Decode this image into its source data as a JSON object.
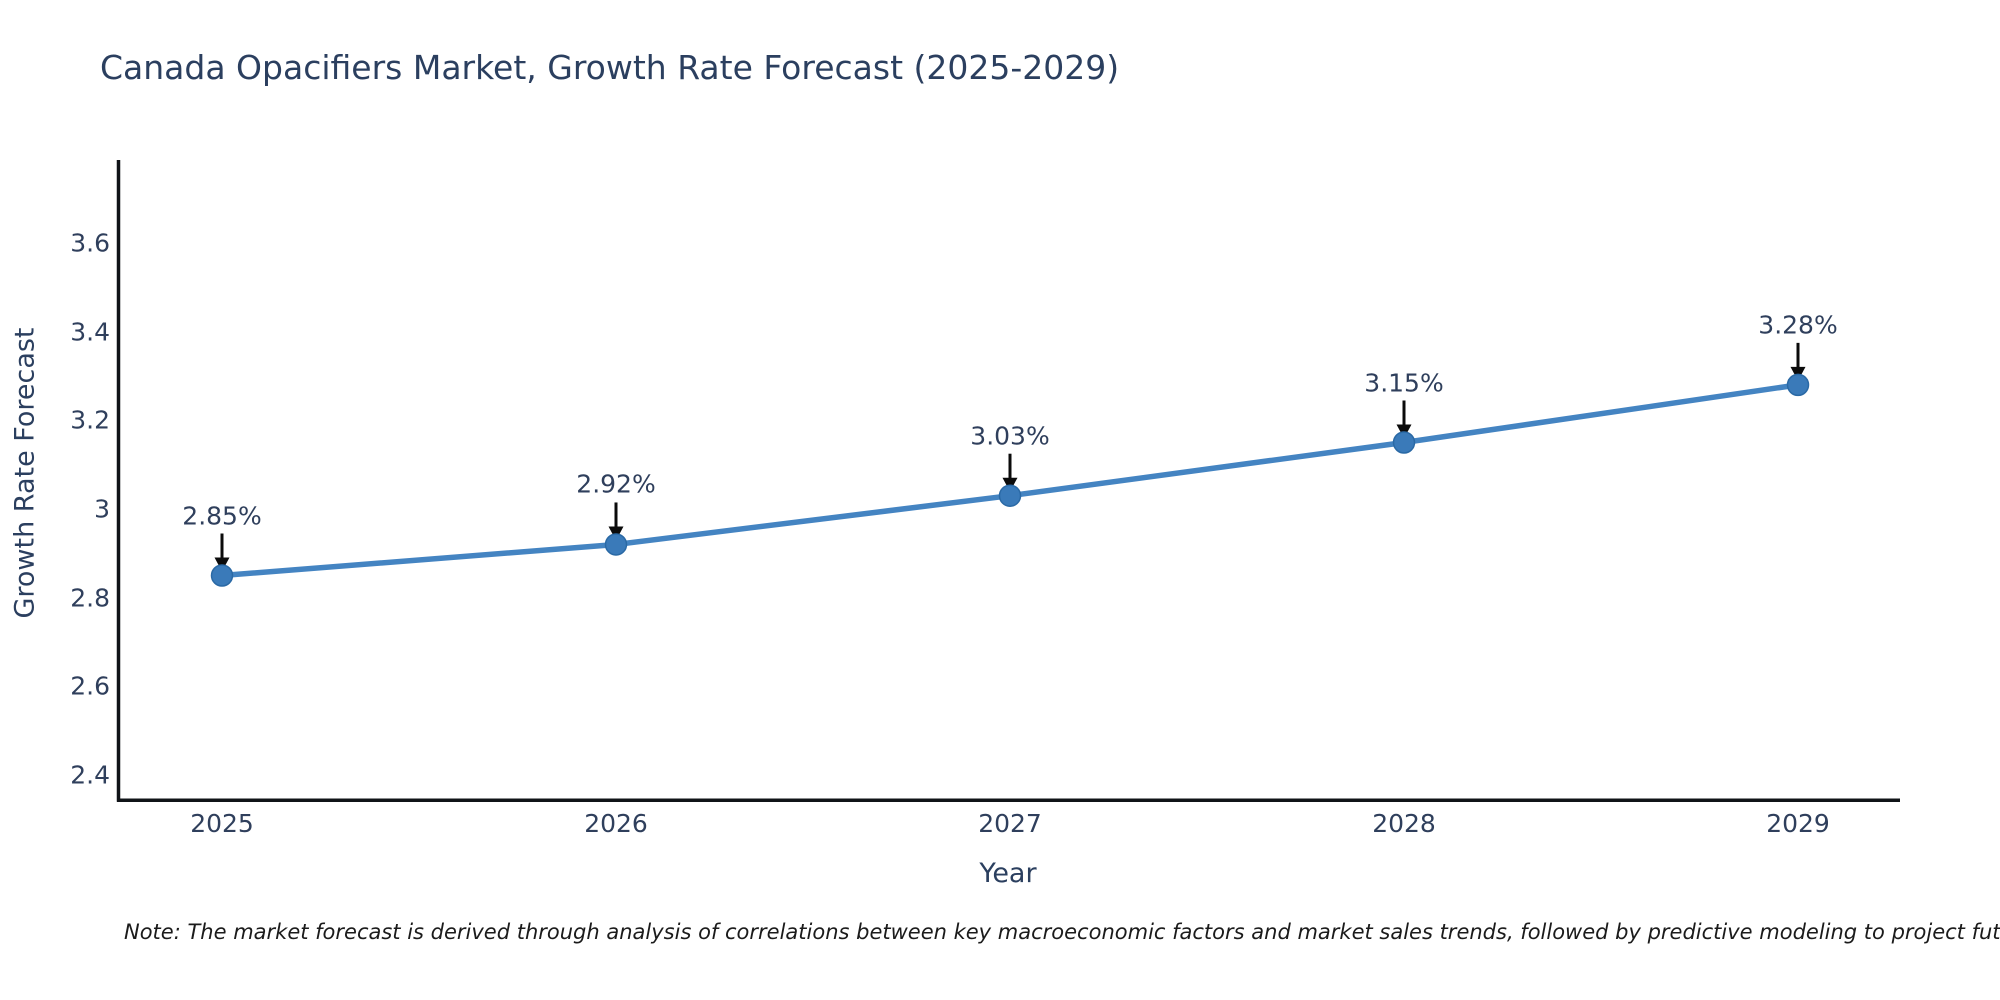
{
  "title": {
    "text": "Canada Opacifiers Market, Growth Rate Forecast (2025-2029)",
    "color": "#2b3f5f"
  },
  "note": {
    "text": "Note: The market forecast is derived through analysis of correlations between key macroeconomic factors and market sales trends, followed by predictive modeling to project future sales"
  },
  "chart_data": {
    "type": "line",
    "title": "Canada Opacifiers Market, Growth Rate Forecast (2025-2029)",
    "xlabel": "Year",
    "ylabel": "Growth Rate Forecast",
    "x": [
      2025,
      2026,
      2027,
      2028,
      2029
    ],
    "values": [
      2.85,
      2.92,
      3.03,
      3.15,
      3.28
    ],
    "point_labels": [
      "2.85%",
      "2.92%",
      "3.03%",
      "3.15%",
      "3.28%"
    ],
    "xtick_labels": [
      "2025",
      "2026",
      "2027",
      "2028",
      "2029"
    ],
    "yticks": [
      3.6,
      3.4,
      3.2,
      3.0,
      2.8,
      2.6,
      2.4
    ],
    "ytick_labels": [
      "3.6",
      "3.4",
      "3.2",
      "3",
      "2.8",
      "2.6",
      "2.4"
    ],
    "ylim": [
      2.344,
      3.807
    ],
    "xlim": [
      2024.73,
      2029.26
    ],
    "grid": false,
    "legend": "none",
    "line_color": "#4484c2",
    "marker_color": "#3a7ab9",
    "marker_edge_color": "#2a69a5",
    "axis_color": "#101418",
    "annotation_arrow_color": "#0b0b0b"
  }
}
